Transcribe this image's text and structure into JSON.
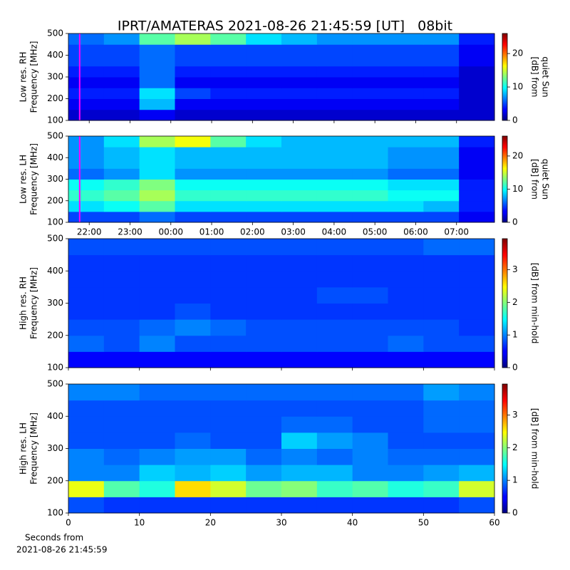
{
  "title": "IPRT/AMATERAS 2021-08-26 21:45:59 [UT]   08bit",
  "footnote_lines": [
    "Seconds from",
    "2021-08-26 21:45:59"
  ],
  "chart_data": [
    {
      "type": "heatmap",
      "ylabel_lines": [
        "Low res. RH",
        "Frequency [MHz]"
      ],
      "x": [
        21.49,
        22.36,
        23.23,
        24.1,
        24.97,
        25.84,
        26.71,
        27.58,
        28.45,
        29.32,
        30.19,
        31.06,
        31.93
      ],
      "y": [
        100,
        150,
        200,
        250,
        300,
        350,
        400,
        450,
        500
      ],
      "z": [
        [
          2,
          2,
          3,
          2,
          2,
          2,
          2,
          2,
          2,
          2,
          2,
          2
        ],
        [
          3,
          3,
          8,
          3,
          3,
          3,
          3,
          3,
          3,
          3,
          3,
          2
        ],
        [
          4,
          4,
          9,
          5,
          4,
          4,
          4,
          4,
          4,
          4,
          4,
          2
        ],
        [
          3,
          3,
          6,
          3,
          3,
          3,
          3,
          3,
          3,
          3,
          3,
          2
        ],
        [
          4,
          4,
          6,
          4,
          4,
          4,
          4,
          4,
          4,
          4,
          4,
          2
        ],
        [
          5,
          5,
          6,
          5,
          5,
          5,
          5,
          5,
          5,
          5,
          5,
          3
        ],
        [
          5,
          5,
          6,
          5,
          5,
          5,
          5,
          5,
          5,
          5,
          5,
          3
        ],
        [
          6,
          7,
          12,
          14,
          12,
          9,
          8,
          7,
          7,
          7,
          7,
          4
        ]
      ],
      "xlim": [
        21.49,
        31.93
      ],
      "ylim": [
        100,
        500
      ],
      "xticks": [
        {
          "value": 22,
          "label": "22:00"
        },
        {
          "value": 23,
          "label": "23:00"
        },
        {
          "value": 24,
          "label": "00:00"
        },
        {
          "value": 25,
          "label": "01:00"
        },
        {
          "value": 26,
          "label": "02:00"
        },
        {
          "value": 27,
          "label": "03:00"
        },
        {
          "value": 28,
          "label": "04:00"
        },
        {
          "value": 29,
          "label": "05:00"
        },
        {
          "value": 30,
          "label": "06:00"
        },
        {
          "value": 31,
          "label": "07:00"
        }
      ],
      "show_xtick_labels": false,
      "yticks": [
        100,
        200,
        300,
        400,
        500
      ],
      "marker": {
        "x": 21.766,
        "color": "#ff00ff"
      },
      "colorbar": {
        "label_lines": [
          "[dB] from",
          "quiet Sun"
        ],
        "lim": [
          0,
          26
        ],
        "ticks": [
          0,
          10,
          20
        ],
        "colormap": "jet"
      }
    },
    {
      "type": "heatmap",
      "ylabel_lines": [
        "Low res. LH",
        "Frequency [MHz]"
      ],
      "x": [
        21.49,
        22.36,
        23.23,
        24.1,
        24.97,
        25.84,
        26.71,
        27.58,
        28.45,
        29.32,
        30.19,
        31.06,
        31.93
      ],
      "y": [
        100,
        150,
        200,
        250,
        300,
        350,
        400,
        450,
        500
      ],
      "z": [
        [
          5,
          5,
          6,
          5,
          5,
          5,
          5,
          5,
          5,
          5,
          5,
          3
        ],
        [
          9,
          10,
          12,
          9,
          9,
          9,
          9,
          9,
          9,
          9,
          8,
          4
        ],
        [
          11,
          12,
          14,
          11,
          11,
          11,
          11,
          11,
          11,
          10,
          10,
          4
        ],
        [
          10,
          11,
          13,
          10,
          10,
          10,
          10,
          10,
          10,
          9,
          9,
          4
        ],
        [
          6,
          7,
          9,
          7,
          7,
          7,
          7,
          7,
          7,
          6,
          6,
          3
        ],
        [
          7,
          8,
          9,
          8,
          8,
          8,
          8,
          8,
          8,
          7,
          7,
          3
        ],
        [
          7,
          8,
          9,
          8,
          8,
          8,
          8,
          8,
          8,
          7,
          7,
          3
        ],
        [
          7,
          9,
          14,
          16,
          12,
          9,
          8,
          8,
          8,
          8,
          8,
          4
        ]
      ],
      "xlim": [
        21.49,
        31.93
      ],
      "ylim": [
        100,
        500
      ],
      "xticks": [
        {
          "value": 22,
          "label": "22:00"
        },
        {
          "value": 23,
          "label": "23:00"
        },
        {
          "value": 24,
          "label": "00:00"
        },
        {
          "value": 25,
          "label": "01:00"
        },
        {
          "value": 26,
          "label": "02:00"
        },
        {
          "value": 27,
          "label": "03:00"
        },
        {
          "value": 28,
          "label": "04:00"
        },
        {
          "value": 29,
          "label": "05:00"
        },
        {
          "value": 30,
          "label": "06:00"
        },
        {
          "value": 31,
          "label": "07:00"
        }
      ],
      "show_xtick_labels": true,
      "yticks": [
        100,
        200,
        300,
        400,
        500
      ],
      "marker": {
        "x": 21.766,
        "color": "#ff00ff"
      },
      "colorbar": {
        "label_lines": [
          "[dB] from",
          "quiet Sun"
        ],
        "lim": [
          0,
          26
        ],
        "ticks": [
          0,
          10,
          20
        ],
        "colormap": "jet"
      }
    },
    {
      "type": "heatmap",
      "ylabel_lines": [
        "High res. RH",
        "Frequency [MHz]"
      ],
      "x": [
        0,
        5,
        10,
        15,
        20,
        25,
        30,
        35,
        40,
        45,
        50,
        55,
        60
      ],
      "y": [
        100,
        150,
        200,
        250,
        300,
        350,
        400,
        450,
        500
      ],
      "z": [
        [
          0.5,
          0.5,
          0.5,
          0.5,
          0.5,
          0.5,
          0.5,
          0.5,
          0.5,
          0.5,
          0.5,
          0.5
        ],
        [
          0.9,
          0.8,
          1.0,
          0.8,
          0.8,
          0.8,
          0.8,
          0.8,
          0.8,
          0.9,
          0.8,
          0.8
        ],
        [
          0.8,
          0.8,
          0.9,
          1.0,
          0.9,
          0.8,
          0.8,
          0.8,
          0.8,
          0.8,
          0.8,
          0.7
        ],
        [
          0.7,
          0.7,
          0.7,
          0.8,
          0.7,
          0.7,
          0.7,
          0.7,
          0.7,
          0.7,
          0.7,
          0.7
        ],
        [
          0.7,
          0.7,
          0.7,
          0.7,
          0.7,
          0.7,
          0.7,
          0.8,
          0.8,
          0.7,
          0.7,
          0.7
        ],
        [
          0.7,
          0.7,
          0.7,
          0.7,
          0.7,
          0.7,
          0.7,
          0.7,
          0.7,
          0.7,
          0.7,
          0.7
        ],
        [
          0.7,
          0.7,
          0.7,
          0.7,
          0.7,
          0.7,
          0.7,
          0.7,
          0.7,
          0.7,
          0.7,
          0.7
        ],
        [
          0.8,
          0.8,
          0.8,
          0.8,
          0.8,
          0.8,
          0.8,
          0.8,
          0.8,
          0.8,
          0.9,
          0.9
        ]
      ],
      "xlim": [
        0,
        60
      ],
      "ylim": [
        100,
        500
      ],
      "xticks": [
        0,
        10,
        20,
        30,
        40,
        50,
        60
      ],
      "show_xtick_labels": false,
      "yticks": [
        100,
        200,
        300,
        400,
        500
      ],
      "colorbar": {
        "label_lines": [
          "[dB] from min-hold"
        ],
        "lim": [
          0,
          3.95
        ],
        "ticks": [
          0,
          1,
          2,
          3
        ],
        "colormap": "jet"
      }
    },
    {
      "type": "heatmap",
      "ylabel_lines": [
        "High res. LH",
        "Frequency [MHz]"
      ],
      "x": [
        0,
        5,
        10,
        15,
        20,
        25,
        30,
        35,
        40,
        45,
        50,
        55,
        60
      ],
      "y": [
        100,
        150,
        200,
        250,
        300,
        350,
        400,
        450,
        500
      ],
      "z": [
        [
          0.8,
          0.7,
          0.7,
          0.7,
          0.7,
          0.7,
          0.7,
          0.7,
          0.7,
          0.7,
          0.7,
          0.8
        ],
        [
          2.4,
          1.8,
          1.6,
          2.6,
          2.3,
          1.9,
          2.0,
          1.7,
          1.8,
          1.6,
          1.7,
          2.3
        ],
        [
          1.0,
          1.0,
          1.3,
          1.2,
          1.3,
          1.1,
          1.2,
          1.2,
          1.0,
          1.0,
          1.1,
          1.2
        ],
        [
          1.0,
          0.9,
          1.0,
          1.1,
          1.1,
          0.9,
          1.0,
          0.9,
          1.0,
          0.9,
          0.9,
          0.9
        ],
        [
          0.8,
          0.8,
          0.8,
          0.9,
          0.8,
          0.8,
          1.3,
          1.1,
          1.0,
          0.8,
          0.8,
          0.8
        ],
        [
          0.8,
          0.8,
          0.8,
          0.8,
          0.8,
          0.8,
          0.9,
          0.9,
          0.8,
          0.8,
          0.9,
          0.9
        ],
        [
          0.8,
          0.8,
          0.8,
          0.8,
          0.8,
          0.8,
          0.8,
          0.8,
          0.8,
          0.8,
          0.9,
          0.9
        ],
        [
          1.0,
          1.0,
          0.9,
          0.9,
          0.9,
          0.9,
          0.9,
          0.9,
          0.9,
          0.9,
          1.1,
          1.0
        ]
      ],
      "xlim": [
        0,
        60
      ],
      "ylim": [
        100,
        500
      ],
      "xticks": [
        0,
        10,
        20,
        30,
        40,
        50,
        60
      ],
      "show_xtick_labels": true,
      "yticks": [
        100,
        200,
        300,
        400,
        500
      ],
      "colorbar": {
        "label_lines": [
          "[dB] from min-hold"
        ],
        "lim": [
          0,
          3.95
        ],
        "ticks": [
          0,
          1,
          2,
          3
        ],
        "colormap": "jet"
      }
    }
  ]
}
